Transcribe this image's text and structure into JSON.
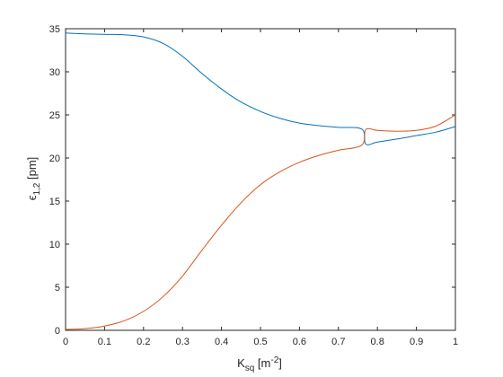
{
  "chart_data": {
    "type": "line",
    "xlim": [
      0,
      1
    ],
    "ylim": [
      0,
      35
    ],
    "xticks": [
      "0",
      "0.1",
      "0.2",
      "0.3",
      "0.4",
      "0.5",
      "0.6",
      "0.7",
      "0.8",
      "0.9",
      "1"
    ],
    "yticks": [
      "0",
      "5",
      "10",
      "15",
      "20",
      "25",
      "30",
      "35"
    ],
    "xlabel": {
      "main": "K",
      "sub": "sq",
      "unit_open": " [m",
      "sup": "-2",
      "unit_close": "]"
    },
    "ylabel": {
      "main": "ϵ",
      "sub": "1,2",
      "unit": " [pm]"
    },
    "grid": false,
    "legend": "none",
    "series": [
      {
        "color": "#0072BD",
        "points": [
          [
            0.0,
            34.5
          ],
          [
            0.05,
            34.4
          ],
          [
            0.1,
            34.35
          ],
          [
            0.15,
            34.3
          ],
          [
            0.2,
            34.05
          ],
          [
            0.25,
            33.3
          ],
          [
            0.3,
            31.8
          ],
          [
            0.35,
            29.8
          ],
          [
            0.4,
            28.0
          ],
          [
            0.45,
            26.5
          ],
          [
            0.5,
            25.4
          ],
          [
            0.55,
            24.6
          ],
          [
            0.6,
            24.05
          ],
          [
            0.65,
            23.75
          ],
          [
            0.7,
            23.55
          ],
          [
            0.76,
            23.35
          ],
          [
            0.77,
            21.6
          ],
          [
            0.8,
            21.85
          ],
          [
            0.85,
            22.2
          ],
          [
            0.9,
            22.6
          ],
          [
            0.95,
            23.0
          ],
          [
            1.0,
            23.65
          ]
        ]
      },
      {
        "color": "#D95319",
        "points": [
          [
            0.0,
            0.1
          ],
          [
            0.05,
            0.2
          ],
          [
            0.1,
            0.5
          ],
          [
            0.15,
            1.1
          ],
          [
            0.2,
            2.2
          ],
          [
            0.25,
            3.9
          ],
          [
            0.3,
            6.3
          ],
          [
            0.35,
            9.3
          ],
          [
            0.4,
            12.2
          ],
          [
            0.45,
            14.8
          ],
          [
            0.5,
            16.9
          ],
          [
            0.55,
            18.4
          ],
          [
            0.6,
            19.5
          ],
          [
            0.65,
            20.3
          ],
          [
            0.7,
            20.9
          ],
          [
            0.76,
            21.5
          ],
          [
            0.77,
            23.3
          ],
          [
            0.8,
            23.2
          ],
          [
            0.85,
            23.1
          ],
          [
            0.9,
            23.2
          ],
          [
            0.95,
            23.7
          ],
          [
            1.0,
            25.0
          ]
        ]
      }
    ]
  }
}
